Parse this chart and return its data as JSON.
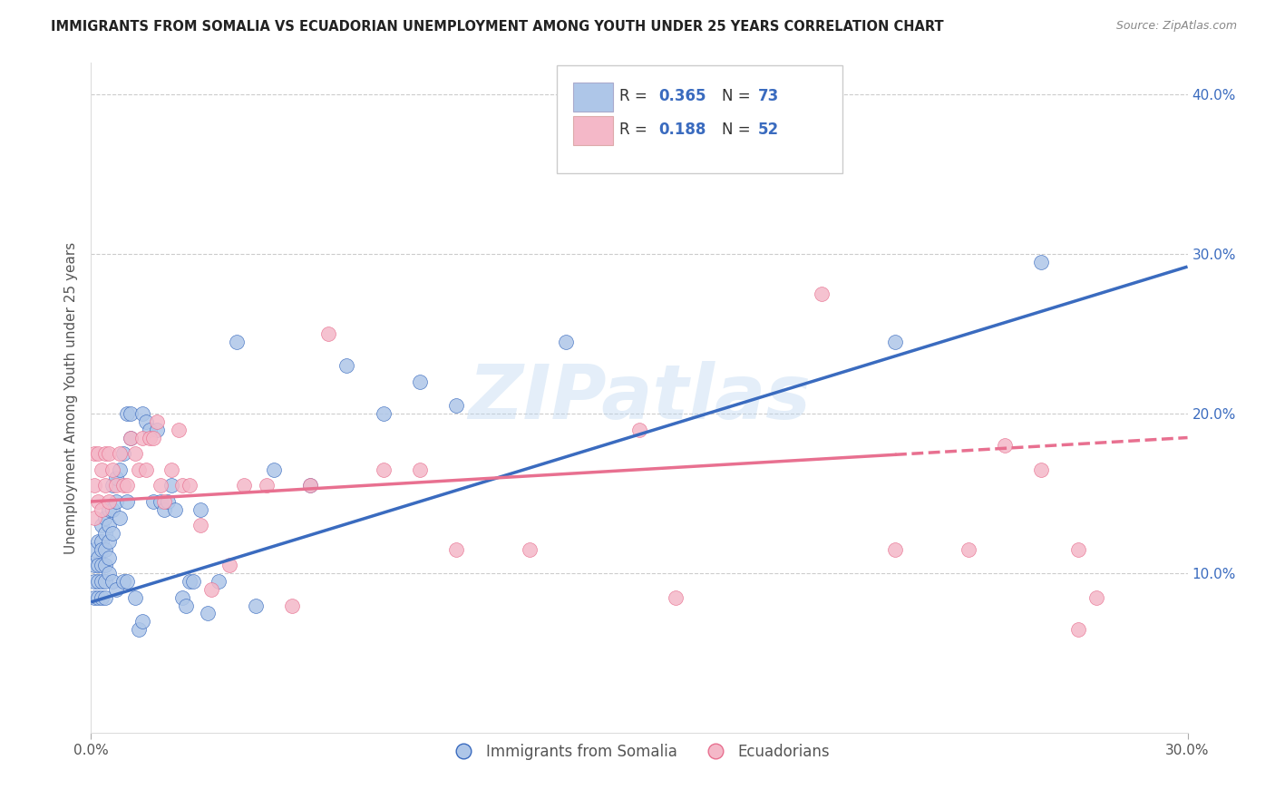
{
  "title": "IMMIGRANTS FROM SOMALIA VS ECUADORIAN UNEMPLOYMENT AMONG YOUTH UNDER 25 YEARS CORRELATION CHART",
  "source": "Source: ZipAtlas.com",
  "ylabel": "Unemployment Among Youth under 25 years",
  "xlim": [
    0.0,
    0.3
  ],
  "ylim": [
    0.0,
    0.42
  ],
  "xtick_positions": [
    0.0,
    0.3
  ],
  "xticklabels": [
    "0.0%",
    "30.0%"
  ],
  "ytick_positions": [
    0.1,
    0.2,
    0.3,
    0.4
  ],
  "yticklabels": [
    "10.0%",
    "20.0%",
    "30.0%",
    "40.0%"
  ],
  "blue_color": "#aec6e8",
  "pink_color": "#f4b8c8",
  "blue_line_color": "#3a6bbf",
  "pink_line_color": "#e87090",
  "watermark": "ZIPatlas",
  "legend_blue_label": "Immigrants from Somalia",
  "legend_pink_label": "Ecuadorians",
  "blue_scatter_x": [
    0.001,
    0.001,
    0.001,
    0.001,
    0.002,
    0.002,
    0.002,
    0.002,
    0.002,
    0.003,
    0.003,
    0.003,
    0.003,
    0.003,
    0.003,
    0.004,
    0.004,
    0.004,
    0.004,
    0.004,
    0.004,
    0.005,
    0.005,
    0.005,
    0.005,
    0.005,
    0.006,
    0.006,
    0.006,
    0.006,
    0.007,
    0.007,
    0.007,
    0.008,
    0.008,
    0.009,
    0.009,
    0.01,
    0.01,
    0.01,
    0.011,
    0.011,
    0.012,
    0.013,
    0.014,
    0.014,
    0.015,
    0.016,
    0.017,
    0.018,
    0.019,
    0.02,
    0.021,
    0.022,
    0.023,
    0.025,
    0.026,
    0.027,
    0.028,
    0.03,
    0.032,
    0.035,
    0.04,
    0.045,
    0.05,
    0.06,
    0.07,
    0.08,
    0.09,
    0.1,
    0.13,
    0.22,
    0.26
  ],
  "blue_scatter_y": [
    0.115,
    0.105,
    0.095,
    0.085,
    0.12,
    0.11,
    0.105,
    0.095,
    0.085,
    0.13,
    0.12,
    0.115,
    0.105,
    0.095,
    0.085,
    0.135,
    0.125,
    0.115,
    0.105,
    0.095,
    0.085,
    0.14,
    0.13,
    0.12,
    0.11,
    0.1,
    0.155,
    0.14,
    0.125,
    0.095,
    0.16,
    0.145,
    0.09,
    0.165,
    0.135,
    0.175,
    0.095,
    0.2,
    0.145,
    0.095,
    0.2,
    0.185,
    0.085,
    0.065,
    0.07,
    0.2,
    0.195,
    0.19,
    0.145,
    0.19,
    0.145,
    0.14,
    0.145,
    0.155,
    0.14,
    0.085,
    0.08,
    0.095,
    0.095,
    0.14,
    0.075,
    0.095,
    0.245,
    0.08,
    0.165,
    0.155,
    0.23,
    0.2,
    0.22,
    0.205,
    0.245,
    0.245,
    0.295
  ],
  "pink_scatter_x": [
    0.001,
    0.001,
    0.001,
    0.002,
    0.002,
    0.003,
    0.003,
    0.004,
    0.004,
    0.005,
    0.005,
    0.006,
    0.007,
    0.008,
    0.009,
    0.01,
    0.011,
    0.012,
    0.013,
    0.014,
    0.015,
    0.016,
    0.017,
    0.018,
    0.019,
    0.02,
    0.022,
    0.024,
    0.025,
    0.027,
    0.03,
    0.033,
    0.038,
    0.042,
    0.048,
    0.055,
    0.06,
    0.065,
    0.08,
    0.09,
    0.1,
    0.12,
    0.15,
    0.16,
    0.2,
    0.22,
    0.24,
    0.25,
    0.26,
    0.27,
    0.27,
    0.275
  ],
  "pink_scatter_y": [
    0.175,
    0.155,
    0.135,
    0.175,
    0.145,
    0.165,
    0.14,
    0.175,
    0.155,
    0.175,
    0.145,
    0.165,
    0.155,
    0.175,
    0.155,
    0.155,
    0.185,
    0.175,
    0.165,
    0.185,
    0.165,
    0.185,
    0.185,
    0.195,
    0.155,
    0.145,
    0.165,
    0.19,
    0.155,
    0.155,
    0.13,
    0.09,
    0.105,
    0.155,
    0.155,
    0.08,
    0.155,
    0.25,
    0.165,
    0.165,
    0.115,
    0.115,
    0.19,
    0.085,
    0.275,
    0.115,
    0.115,
    0.18,
    0.165,
    0.115,
    0.065,
    0.085
  ],
  "blue_line_x": [
    0.0,
    0.3
  ],
  "blue_line_y": [
    0.082,
    0.292
  ],
  "pink_line_x": [
    0.0,
    0.3
  ],
  "pink_line_y": [
    0.145,
    0.185
  ]
}
